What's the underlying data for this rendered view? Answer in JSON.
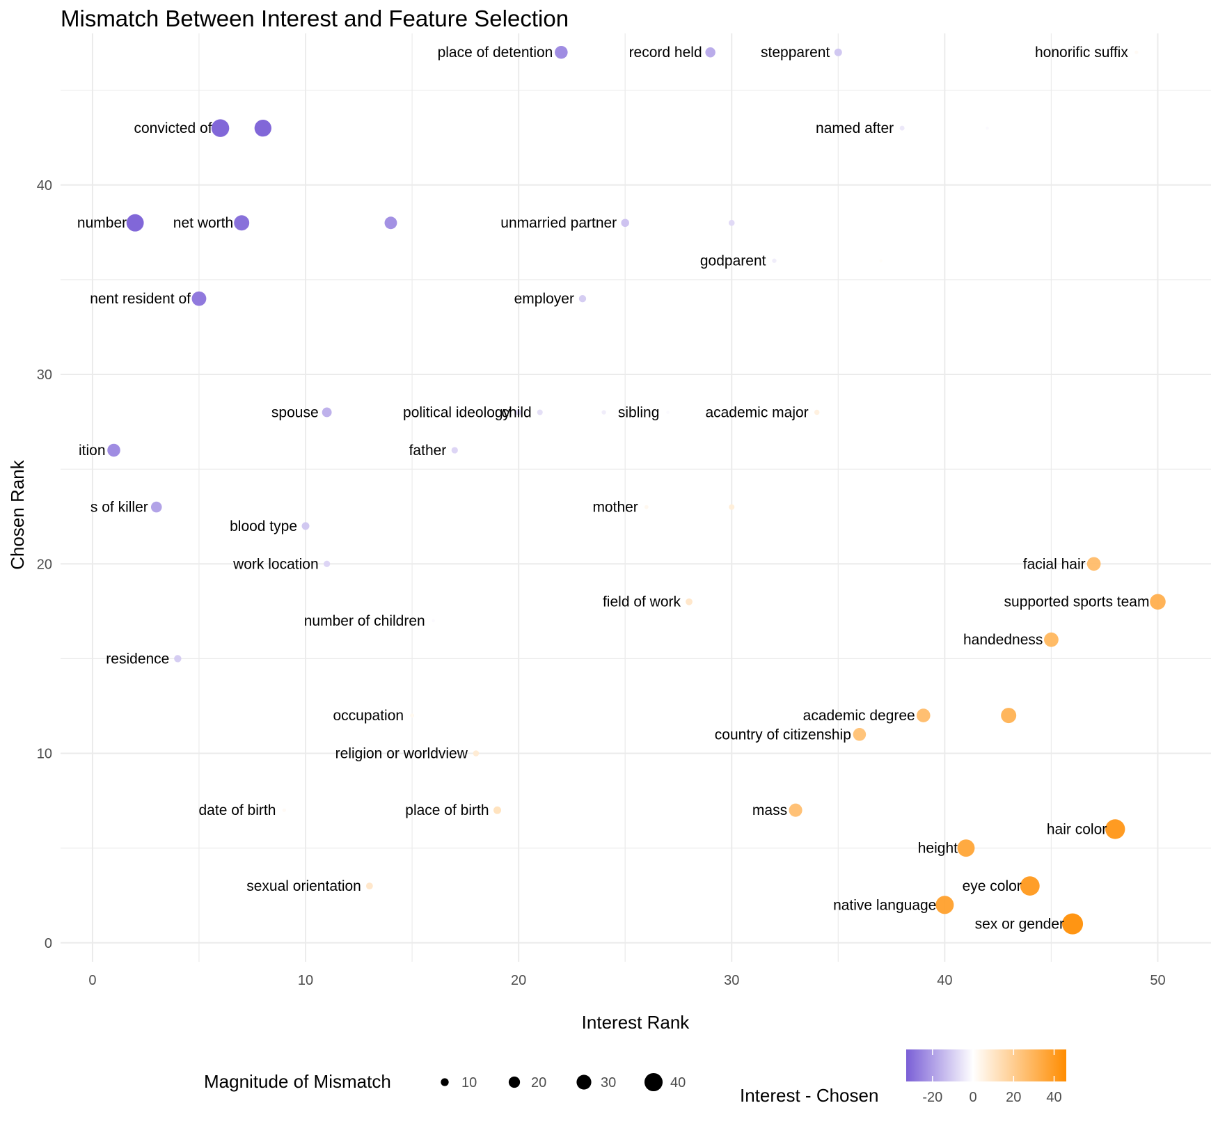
{
  "chart_data": {
    "type": "scatter",
    "title": "Mismatch Between Interest and Feature Selection",
    "xlabel": "Interest Rank",
    "ylabel": "Chosen Rank",
    "xlim": [
      -1.5,
      52.5
    ],
    "ylim": [
      -1,
      48
    ],
    "x_ticks": [
      0,
      10,
      20,
      30,
      40,
      50
    ],
    "y_ticks": [
      0,
      10,
      20,
      30,
      40
    ],
    "grid": true,
    "colors": {
      "low": "#7a5fd6",
      "mid": "#ffffff",
      "high": "#ff8c00"
    },
    "legend": {
      "size_title": "Magnitude of Mismatch",
      "size_values": [
        10,
        20,
        30,
        40
      ],
      "color_title": "Interest - Chosen",
      "color_ticks": [
        -20,
        0,
        20,
        40
      ],
      "color_range": [
        -33,
        46
      ]
    },
    "points": [
      {
        "label": "place of detention",
        "x": 22,
        "y": 47
      },
      {
        "label": "record held",
        "x": 29,
        "y": 47
      },
      {
        "label": "stepparent",
        "x": 35,
        "y": 47
      },
      {
        "label": "honorific suffix",
        "x": 49,
        "y": 47
      },
      {
        "label": "convicted of",
        "x": 6,
        "y": 43
      },
      {
        "label": "",
        "x": 8,
        "y": 43
      },
      {
        "label": "named after",
        "x": 38,
        "y": 43
      },
      {
        "label": "",
        "x": 42,
        "y": 43
      },
      {
        "label": "number",
        "x": 2,
        "y": 38
      },
      {
        "label": "net worth",
        "x": 7,
        "y": 38
      },
      {
        "label": "",
        "x": 14,
        "y": 38
      },
      {
        "label": "unmarried partner",
        "x": 25,
        "y": 38
      },
      {
        "label": "",
        "x": 30,
        "y": 38
      },
      {
        "label": "godparent",
        "x": 32,
        "y": 36
      },
      {
        "label": "",
        "x": 37,
        "y": 36
      },
      {
        "label": "nent resident of",
        "x": 5,
        "y": 34
      },
      {
        "label": "employer",
        "x": 23,
        "y": 34
      },
      {
        "label": "spouse",
        "x": 11,
        "y": 28
      },
      {
        "label": "political ideology",
        "x": 20,
        "y": 28
      },
      {
        "label": "child",
        "x": 21,
        "y": 28
      },
      {
        "label": "",
        "x": 24,
        "y": 28
      },
      {
        "label": "sibling",
        "x": 27,
        "y": 28
      },
      {
        "label": "academic major",
        "x": 34,
        "y": 28
      },
      {
        "label": "ition",
        "x": 1,
        "y": 26
      },
      {
        "label": "father",
        "x": 17,
        "y": 26
      },
      {
        "label": "s of killer",
        "x": 3,
        "y": 23
      },
      {
        "label": "mother",
        "x": 26,
        "y": 23
      },
      {
        "label": "",
        "x": 30,
        "y": 23
      },
      {
        "label": "blood type",
        "x": 10,
        "y": 22
      },
      {
        "label": "work location",
        "x": 11,
        "y": 20
      },
      {
        "label": "facial hair",
        "x": 47,
        "y": 20
      },
      {
        "label": "field of work",
        "x": 28,
        "y": 18
      },
      {
        "label": "supported sports team",
        "x": 50,
        "y": 18
      },
      {
        "label": "number of children",
        "x": 16,
        "y": 17
      },
      {
        "label": "handedness",
        "x": 45,
        "y": 16
      },
      {
        "label": "residence",
        "x": 4,
        "y": 15
      },
      {
        "label": "occupation",
        "x": 15,
        "y": 12
      },
      {
        "label": "academic degree",
        "x": 39,
        "y": 12
      },
      {
        "label": "",
        "x": 43,
        "y": 12
      },
      {
        "label": "country of citizenship",
        "x": 36,
        "y": 11
      },
      {
        "label": "religion or worldview",
        "x": 18,
        "y": 10
      },
      {
        "label": "date of birth",
        "x": 9,
        "y": 7
      },
      {
        "label": "place of birth",
        "x": 19,
        "y": 7
      },
      {
        "label": "mass",
        "x": 33,
        "y": 7
      },
      {
        "label": "hair color",
        "x": 48,
        "y": 6
      },
      {
        "label": "height",
        "x": 41,
        "y": 5
      },
      {
        "label": "sexual orientation",
        "x": 13,
        "y": 3
      },
      {
        "label": "eye color",
        "x": 44,
        "y": 3
      },
      {
        "label": "native language",
        "x": 40,
        "y": 2
      },
      {
        "label": "sex or gender",
        "x": 46,
        "y": 1
      }
    ]
  }
}
